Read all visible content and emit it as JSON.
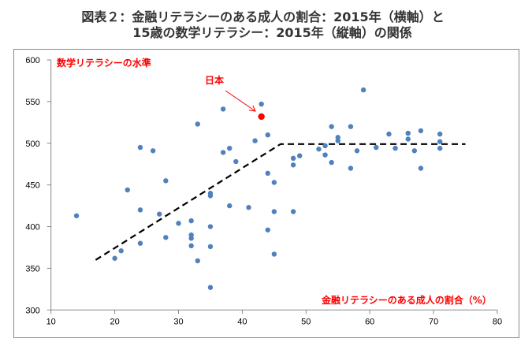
{
  "title_line1": "図表２：金融リテラシーのある成人の割合：2015年（横軸）と",
  "title_line2": "15歳の数学リテラシー：2015年（縦軸）の関係",
  "chart_data": {
    "type": "scatter",
    "title": "図表２：金融リテラシーのある成人の割合：2015年（横軸）と15歳の数学リテラシー：2015年（縦軸）の関係",
    "xlabel": "金融リテラシーのある成人の割合（%）",
    "ylabel": "数学リテラシーの水準",
    "xlim": [
      10,
      80
    ],
    "ylim": [
      300,
      600
    ],
    "xticks": [
      10,
      20,
      30,
      40,
      50,
      60,
      70,
      80
    ],
    "yticks": [
      300,
      350,
      400,
      450,
      500,
      550,
      600
    ],
    "grid": false,
    "point_color": "#4f81bd",
    "highlight_color": "#ff0000",
    "trend_color": "#000000",
    "points": [
      [
        14,
        413
      ],
      [
        20,
        362
      ],
      [
        21,
        371
      ],
      [
        22,
        444
      ],
      [
        24,
        495
      ],
      [
        24,
        420
      ],
      [
        24,
        380
      ],
      [
        26,
        491
      ],
      [
        27,
        415
      ],
      [
        28,
        455
      ],
      [
        28,
        387
      ],
      [
        30,
        404
      ],
      [
        32,
        407
      ],
      [
        32,
        390
      ],
      [
        32,
        386
      ],
      [
        32,
        377
      ],
      [
        33,
        523
      ],
      [
        33,
        359
      ],
      [
        35,
        440
      ],
      [
        35,
        437
      ],
      [
        35,
        400
      ],
      [
        35,
        376
      ],
      [
        35,
        327
      ],
      [
        37,
        541
      ],
      [
        37,
        489
      ],
      [
        38,
        494
      ],
      [
        38,
        425
      ],
      [
        39,
        478
      ],
      [
        41,
        423
      ],
      [
        42,
        503
      ],
      [
        43,
        547
      ],
      [
        44,
        510
      ],
      [
        44,
        464
      ],
      [
        44,
        396
      ],
      [
        45,
        453
      ],
      [
        45,
        418
      ],
      [
        45,
        367
      ],
      [
        48,
        482
      ],
      [
        48,
        474
      ],
      [
        48,
        418
      ],
      [
        49,
        485
      ],
      [
        52,
        493
      ],
      [
        53,
        497
      ],
      [
        53,
        486
      ],
      [
        54,
        520
      ],
      [
        54,
        477
      ],
      [
        55,
        507
      ],
      [
        55,
        503
      ],
      [
        57,
        520
      ],
      [
        57,
        470
      ],
      [
        58,
        491
      ],
      [
        59,
        564
      ],
      [
        61,
        495
      ],
      [
        63,
        511
      ],
      [
        64,
        494
      ],
      [
        66,
        512
      ],
      [
        66,
        505
      ],
      [
        67,
        491
      ],
      [
        68,
        515
      ],
      [
        68,
        470
      ],
      [
        71,
        511
      ],
      [
        71,
        502
      ],
      [
        71,
        494
      ]
    ],
    "highlight": {
      "label": "日本",
      "x": 43,
      "y": 532
    },
    "trend_line": [
      [
        17,
        360
      ],
      [
        46,
        499
      ],
      [
        75,
        499
      ]
    ]
  }
}
